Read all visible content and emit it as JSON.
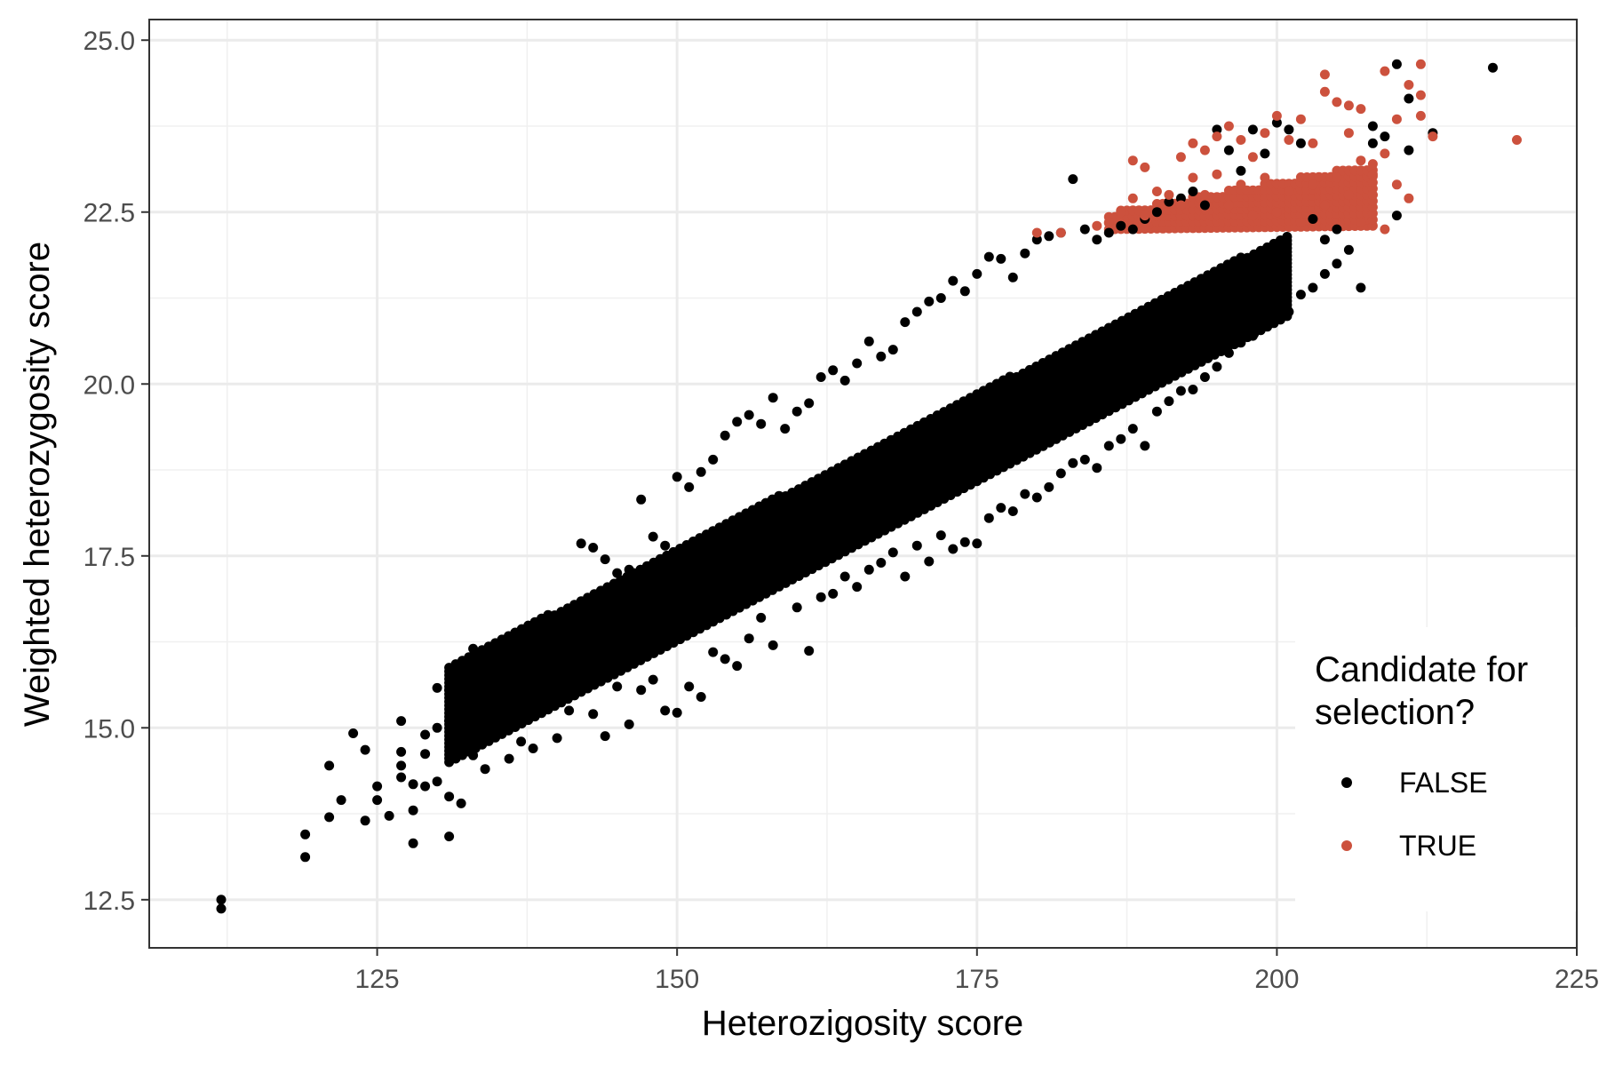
{
  "chart_data": {
    "type": "scatter",
    "title": "",
    "xlabel": "Heterozigosity score",
    "ylabel": "Weighted heterozygosity score",
    "xlim": [
      106,
      225
    ],
    "ylim": [
      11.8,
      25.3
    ],
    "x_ticks": [
      125,
      150,
      175,
      200,
      225
    ],
    "x_tick_labels": [
      "125",
      "150",
      "175",
      "200",
      "225"
    ],
    "y_ticks": [
      12.5,
      15.0,
      17.5,
      20.0,
      22.5,
      25.0
    ],
    "y_tick_labels": [
      "12.5",
      "15.0",
      "17.5",
      "20.0",
      "22.5",
      "25.0"
    ],
    "grid": true,
    "legend": {
      "title_lines": [
        "Candidate for",
        "selection?"
      ],
      "position": "right",
      "entries": [
        {
          "label": "FALSE",
          "color": "#000000"
        },
        {
          "label": "TRUE",
          "color": "#cc513d"
        }
      ]
    },
    "series": [
      {
        "name": "FALSE",
        "color": "#000000",
        "points": [
          [
            112,
            12.5
          ],
          [
            112,
            12.37
          ],
          [
            119,
            13.12
          ],
          [
            119,
            13.45
          ],
          [
            121,
            13.7
          ],
          [
            121,
            14.45
          ],
          [
            122,
            13.95
          ],
          [
            123,
            14.92
          ],
          [
            124,
            13.65
          ],
          [
            124,
            14.68
          ],
          [
            125,
            14.15
          ],
          [
            125,
            13.95
          ],
          [
            126,
            13.72
          ],
          [
            127,
            14.65
          ],
          [
            127,
            14.45
          ],
          [
            127,
            14.28
          ],
          [
            127,
            15.1
          ],
          [
            128,
            14.18
          ],
          [
            128,
            13.32
          ],
          [
            128,
            13.8
          ],
          [
            129,
            14.62
          ],
          [
            129,
            14.9
          ],
          [
            129,
            14.15
          ],
          [
            130,
            14.22
          ],
          [
            130,
            15.58
          ],
          [
            130,
            15.0
          ],
          [
            131,
            13.42
          ],
          [
            131,
            15.55
          ],
          [
            131,
            15.1
          ],
          [
            131,
            14.0
          ],
          [
            132,
            13.9
          ],
          [
            132,
            14.85
          ],
          [
            132,
            15.22
          ],
          [
            133,
            16.15
          ],
          [
            133,
            15.55
          ],
          [
            133,
            14.6
          ],
          [
            134,
            15.3
          ],
          [
            134,
            14.4
          ],
          [
            135,
            15.45
          ],
          [
            136,
            16.05
          ],
          [
            136,
            14.55
          ],
          [
            137,
            16.3
          ],
          [
            137,
            14.8
          ],
          [
            138,
            16.45
          ],
          [
            138,
            14.7
          ],
          [
            139,
            15.8
          ],
          [
            140,
            16.6
          ],
          [
            140,
            14.85
          ],
          [
            141,
            16.4
          ],
          [
            141,
            15.25
          ],
          [
            142,
            17.68
          ],
          [
            142,
            16.05
          ],
          [
            143,
            17.62
          ],
          [
            143,
            15.2
          ],
          [
            144,
            17.45
          ],
          [
            144,
            14.88
          ],
          [
            145,
            17.25
          ],
          [
            145,
            15.6
          ],
          [
            146,
            17.3
          ],
          [
            146,
            15.05
          ],
          [
            147,
            18.32
          ],
          [
            147,
            15.55
          ],
          [
            148,
            17.78
          ],
          [
            148,
            15.7
          ],
          [
            149,
            17.65
          ],
          [
            149,
            15.25
          ],
          [
            150,
            18.65
          ],
          [
            150,
            15.22
          ],
          [
            151,
            18.5
          ],
          [
            151,
            15.6
          ],
          [
            152,
            18.72
          ],
          [
            152,
            15.45
          ],
          [
            153,
            18.9
          ],
          [
            153,
            16.1
          ],
          [
            154,
            19.25
          ],
          [
            154,
            16.0
          ],
          [
            155,
            19.45
          ],
          [
            155,
            15.9
          ],
          [
            156,
            19.55
          ],
          [
            156,
            16.3
          ],
          [
            157,
            19.42
          ],
          [
            157,
            16.6
          ],
          [
            158,
            19.8
          ],
          [
            158,
            16.2
          ],
          [
            159,
            19.35
          ],
          [
            160,
            19.6
          ],
          [
            160,
            16.75
          ],
          [
            161,
            19.72
          ],
          [
            161,
            16.12
          ],
          [
            162,
            20.1
          ],
          [
            162,
            16.9
          ],
          [
            163,
            20.2
          ],
          [
            163,
            16.95
          ],
          [
            164,
            20.05
          ],
          [
            164,
            17.2
          ],
          [
            165,
            20.3
          ],
          [
            165,
            17.05
          ],
          [
            166,
            20.62
          ],
          [
            166,
            17.3
          ],
          [
            167,
            20.4
          ],
          [
            167,
            17.4
          ],
          [
            168,
            20.5
          ],
          [
            168,
            17.55
          ],
          [
            169,
            20.9
          ],
          [
            169,
            17.2
          ],
          [
            170,
            21.05
          ],
          [
            170,
            17.65
          ],
          [
            171,
            21.2
          ],
          [
            171,
            17.42
          ],
          [
            172,
            21.25
          ],
          [
            172,
            17.8
          ],
          [
            173,
            21.5
          ],
          [
            173,
            17.6
          ],
          [
            174,
            21.35
          ],
          [
            174,
            17.7
          ],
          [
            175,
            21.6
          ],
          [
            175,
            17.68
          ],
          [
            176,
            21.85
          ],
          [
            176,
            18.05
          ],
          [
            177,
            21.82
          ],
          [
            177,
            18.2
          ],
          [
            178,
            21.55
          ],
          [
            178,
            18.15
          ],
          [
            179,
            21.9
          ],
          [
            179,
            18.4
          ],
          [
            180,
            22.1
          ],
          [
            180,
            18.35
          ],
          [
            181,
            22.15
          ],
          [
            181,
            18.5
          ],
          [
            182,
            22.2
          ],
          [
            182,
            18.7
          ],
          [
            183,
            22.98
          ],
          [
            183,
            18.85
          ],
          [
            184,
            22.25
          ],
          [
            184,
            18.9
          ],
          [
            185,
            22.1
          ],
          [
            185,
            18.78
          ],
          [
            186,
            22.2
          ],
          [
            186,
            19.1
          ],
          [
            187,
            22.3
          ],
          [
            187,
            19.2
          ],
          [
            188,
            22.25
          ],
          [
            188,
            19.35
          ],
          [
            189,
            22.4
          ],
          [
            189,
            19.1
          ],
          [
            190,
            22.5
          ],
          [
            190,
            19.6
          ],
          [
            191,
            22.65
          ],
          [
            191,
            19.75
          ],
          [
            192,
            22.7
          ],
          [
            192,
            19.9
          ],
          [
            193,
            22.8
          ],
          [
            193,
            19.92
          ],
          [
            194,
            22.6
          ],
          [
            194,
            20.1
          ],
          [
            195,
            23.7
          ],
          [
            195,
            20.25
          ],
          [
            196,
            23.4
          ],
          [
            196,
            20.45
          ],
          [
            197,
            23.1
          ],
          [
            197,
            20.6
          ],
          [
            198,
            23.7
          ],
          [
            198,
            20.7
          ],
          [
            199,
            23.35
          ],
          [
            199,
            20.85
          ],
          [
            200,
            23.8
          ],
          [
            200,
            20.95
          ],
          [
            201,
            23.7
          ],
          [
            201,
            21.05
          ],
          [
            202,
            23.5
          ],
          [
            202,
            21.3
          ],
          [
            203,
            22.4
          ],
          [
            203,
            21.4
          ],
          [
            204,
            22.1
          ],
          [
            204,
            21.6
          ],
          [
            205,
            22.25
          ],
          [
            205,
            21.75
          ],
          [
            206,
            21.95
          ],
          [
            207,
            21.4
          ],
          [
            208,
            23.5
          ],
          [
            208,
            23.75
          ],
          [
            209,
            23.6
          ],
          [
            210,
            22.45
          ],
          [
            210,
            24.65
          ],
          [
            211,
            23.4
          ],
          [
            211,
            24.15
          ],
          [
            213,
            23.65
          ],
          [
            218,
            24.6
          ]
        ]
      },
      {
        "name": "TRUE",
        "color": "#cc513d",
        "points": [
          [
            180,
            22.2
          ],
          [
            182,
            22.2
          ],
          [
            185,
            22.3
          ],
          [
            186,
            22.35
          ],
          [
            187,
            22.5
          ],
          [
            188,
            23.25
          ],
          [
            188,
            22.7
          ],
          [
            189,
            23.15
          ],
          [
            189,
            22.45
          ],
          [
            190,
            22.8
          ],
          [
            191,
            22.75
          ],
          [
            192,
            23.3
          ],
          [
            192,
            22.6
          ],
          [
            193,
            23.5
          ],
          [
            193,
            23.0
          ],
          [
            194,
            23.4
          ],
          [
            194,
            22.75
          ],
          [
            195,
            23.6
          ],
          [
            195,
            23.05
          ],
          [
            196,
            23.75
          ],
          [
            196,
            22.6
          ],
          [
            197,
            23.55
          ],
          [
            197,
            22.9
          ],
          [
            198,
            23.3
          ],
          [
            198,
            22.45
          ],
          [
            199,
            23.65
          ],
          [
            199,
            23.0
          ],
          [
            200,
            23.9
          ],
          [
            200,
            22.5
          ],
          [
            201,
            23.55
          ],
          [
            201,
            22.8
          ],
          [
            202,
            23.85
          ],
          [
            202,
            22.35
          ],
          [
            203,
            23.5
          ],
          [
            203,
            22.9
          ],
          [
            204,
            24.5
          ],
          [
            204,
            24.25
          ],
          [
            204,
            22.6
          ],
          [
            205,
            24.1
          ],
          [
            205,
            23.0
          ],
          [
            206,
            23.65
          ],
          [
            206,
            24.05
          ],
          [
            206,
            22.75
          ],
          [
            207,
            24.0
          ],
          [
            207,
            23.25
          ],
          [
            207,
            22.35
          ],
          [
            208,
            22.75
          ],
          [
            208,
            23.05
          ],
          [
            209,
            24.55
          ],
          [
            209,
            22.25
          ],
          [
            209,
            23.35
          ],
          [
            210,
            23.85
          ],
          [
            210,
            22.9
          ],
          [
            211,
            24.35
          ],
          [
            211,
            22.7
          ],
          [
            212,
            24.65
          ],
          [
            212,
            24.2
          ],
          [
            212,
            23.9
          ],
          [
            213,
            23.6
          ],
          [
            220,
            23.55
          ]
        ]
      }
    ],
    "dense_bands": [
      {
        "series": "FALSE",
        "x_from": 131,
        "x_to": 201,
        "lower_at_from": 14.5,
        "lower_at_to": 21.0,
        "upper_at_from": 15.9,
        "upper_at_to": 22.2,
        "step": 0.55,
        "y_step": 0.055
      },
      {
        "series": "TRUE",
        "x_from": 186,
        "x_to": 208,
        "lower_at_from": 22.25,
        "lower_at_to": 22.3,
        "upper_at_from": 22.5,
        "upper_at_to": 23.2,
        "step": 0.5,
        "y_step": 0.09
      }
    ]
  }
}
